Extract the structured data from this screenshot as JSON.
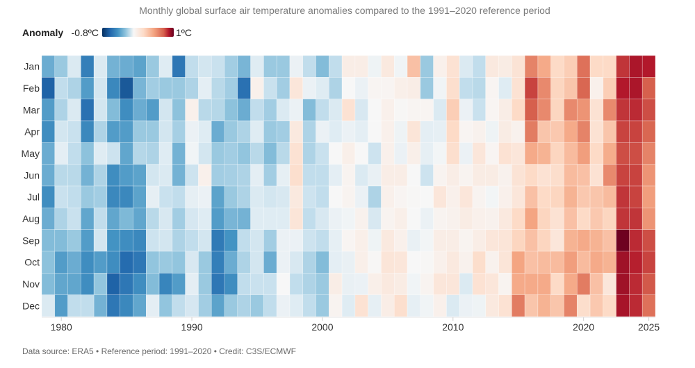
{
  "chart_data": {
    "type": "heatmap",
    "title": "Monthly global surface air temperature anomalies compared to the 1991–2020 reference period",
    "legend": {
      "title": "Anomaly",
      "min_label": "-0.8ºC",
      "max_label": "1ºC",
      "placement": "top-left"
    },
    "color_scale": {
      "min": -0.8,
      "max": 1,
      "low": "#053061",
      "mid": "#f7f7f7",
      "high": "#67001f"
    },
    "months": [
      "Jan",
      "Feb",
      "Mar",
      "Apr",
      "May",
      "Jun",
      "Jul",
      "Aug",
      "Sep",
      "Oct",
      "Nov",
      "Dec"
    ],
    "years": [
      1979,
      1980,
      1981,
      1982,
      1983,
      1984,
      1985,
      1986,
      1987,
      1988,
      1989,
      1990,
      1991,
      1992,
      1993,
      1994,
      1995,
      1996,
      1997,
      1998,
      1999,
      2000,
      2001,
      2002,
      2003,
      2004,
      2005,
      2006,
      2007,
      2008,
      2009,
      2010,
      2011,
      2012,
      2013,
      2014,
      2015,
      2016,
      2017,
      2018,
      2019,
      2020,
      2021,
      2022,
      2023,
      2024,
      2025
    ],
    "x_tick_labels": [
      "1980",
      "1990",
      "2000",
      "2010",
      "2020",
      "2025"
    ],
    "values_by_year": [
      [
        -0.4,
        -0.65,
        -0.45,
        -0.5,
        -0.4,
        -0.4,
        -0.5,
        -0.4,
        -0.35,
        -0.33,
        -0.35,
        -0.12
      ],
      [
        -0.3,
        -0.2,
        -0.25,
        -0.15,
        -0.08,
        -0.22,
        -0.18,
        -0.25,
        -0.35,
        -0.45,
        -0.42,
        -0.45
      ],
      [
        -0.12,
        -0.25,
        -0.12,
        -0.18,
        -0.2,
        -0.22,
        -0.2,
        -0.18,
        -0.3,
        -0.4,
        -0.42,
        -0.2
      ],
      [
        -0.55,
        -0.45,
        -0.6,
        -0.52,
        -0.33,
        -0.38,
        -0.3,
        -0.42,
        -0.45,
        -0.5,
        -0.5,
        -0.2
      ],
      [
        -0.12,
        -0.15,
        -0.15,
        -0.25,
        -0.1,
        -0.25,
        -0.28,
        -0.2,
        -0.15,
        -0.45,
        -0.32,
        -0.38
      ],
      [
        -0.38,
        -0.52,
        -0.35,
        -0.45,
        -0.17,
        -0.5,
        -0.52,
        -0.42,
        -0.48,
        -0.5,
        -0.65,
        -0.58
      ],
      [
        -0.4,
        -0.68,
        -0.5,
        -0.45,
        -0.42,
        -0.45,
        -0.52,
        -0.36,
        -0.5,
        -0.62,
        -0.58,
        -0.52
      ],
      [
        -0.43,
        -0.37,
        -0.4,
        -0.3,
        -0.23,
        -0.43,
        -0.43,
        -0.42,
        -0.52,
        -0.58,
        -0.5,
        -0.42
      ],
      [
        -0.3,
        -0.28,
        -0.45,
        -0.3,
        -0.25,
        -0.15,
        -0.07,
        -0.22,
        -0.17,
        -0.32,
        -0.35,
        -0.08
      ],
      [
        -0.1,
        -0.3,
        -0.15,
        -0.15,
        -0.1,
        -0.12,
        -0.18,
        -0.13,
        -0.15,
        -0.3,
        -0.53,
        -0.32
      ],
      [
        -0.58,
        -0.3,
        -0.33,
        -0.27,
        -0.38,
        -0.38,
        -0.2,
        -0.28,
        -0.25,
        -0.32,
        -0.45,
        -0.2
      ],
      [
        -0.2,
        -0.25,
        0.05,
        -0.05,
        -0.03,
        -0.17,
        -0.07,
        -0.14,
        -0.2,
        -0.13,
        -0.08,
        -0.14
      ],
      [
        -0.15,
        -0.08,
        -0.22,
        -0.1,
        -0.15,
        0.05,
        -0.05,
        -0.1,
        -0.15,
        -0.3,
        -0.3,
        -0.28
      ],
      [
        -0.18,
        -0.22,
        -0.23,
        -0.4,
        -0.3,
        -0.28,
        -0.43,
        -0.45,
        -0.57,
        -0.55,
        -0.58,
        -0.43
      ],
      [
        -0.28,
        -0.28,
        -0.33,
        -0.3,
        -0.28,
        -0.27,
        -0.3,
        -0.37,
        -0.48,
        -0.4,
        -0.5,
        -0.3
      ],
      [
        -0.37,
        -0.6,
        -0.4,
        -0.25,
        -0.32,
        -0.25,
        -0.25,
        -0.38,
        -0.2,
        -0.25,
        -0.2,
        -0.25
      ],
      [
        -0.1,
        0.05,
        -0.2,
        -0.1,
        -0.22,
        -0.08,
        -0.12,
        -0.1,
        -0.15,
        -0.15,
        -0.18,
        -0.3
      ],
      [
        -0.3,
        -0.18,
        -0.28,
        -0.3,
        -0.35,
        -0.28,
        -0.15,
        -0.1,
        -0.28,
        -0.4,
        -0.18,
        -0.2
      ],
      [
        -0.3,
        -0.28,
        -0.12,
        -0.28,
        -0.22,
        -0.07,
        -0.13,
        -0.1,
        -0.05,
        -0.05,
        0,
        -0.05
      ],
      [
        -0.05,
        0.12,
        -0.05,
        0.1,
        0.15,
        0.17,
        0.1,
        0.13,
        -0.05,
        -0.13,
        -0.2,
        -0.1
      ],
      [
        -0.2,
        -0.05,
        -0.35,
        -0.25,
        -0.25,
        -0.2,
        -0.17,
        -0.2,
        -0.17,
        -0.25,
        -0.25,
        -0.2
      ],
      [
        -0.35,
        -0.1,
        -0.2,
        -0.05,
        -0.18,
        -0.2,
        -0.2,
        -0.13,
        -0.2,
        -0.35,
        -0.3,
        -0.3
      ],
      [
        -0.2,
        -0.25,
        -0.12,
        -0.1,
        0,
        -0.08,
        0,
        -0.05,
        -0.07,
        -0.08,
        0.07,
        0.03
      ],
      [
        0.07,
        0,
        0.15,
        -0.05,
        0.06,
        0.03,
        0.03,
        -0.03,
        0.02,
        -0.06,
        -0.06,
        -0.1
      ],
      [
        0.07,
        -0.05,
        -0.13,
        -0.08,
        0,
        -0.12,
        -0.05,
        0.04,
        0.06,
        0.06,
        -0.05,
        0.15
      ],
      [
        -0.04,
        0.02,
        0,
        0,
        -0.17,
        -0.06,
        -0.25,
        -0.13,
        -0.04,
        0.01,
        0.06,
        -0.07
      ],
      [
        0.1,
        0.02,
        0.05,
        0.05,
        0.05,
        0.07,
        0.05,
        0.03,
        0.1,
        0.13,
        0.1,
        0.07
      ],
      [
        -0.03,
        0.06,
        0.01,
        -0.04,
        -0.05,
        0.07,
        0.02,
        0.06,
        0.05,
        0.12,
        0.08,
        0.17
      ],
      [
        0.3,
        0.07,
        0.02,
        0.13,
        0.06,
        0,
        0.01,
        0,
        -0.06,
        0,
        -0.03,
        -0.07
      ],
      [
        -0.3,
        -0.3,
        0.02,
        -0.08,
        -0.07,
        -0.17,
        0,
        -0.05,
        -0.02,
        0.01,
        0.03,
        -0.03
      ],
      [
        0.05,
        -0.03,
        -0.12,
        -0.07,
        -0.02,
        0.03,
        0.12,
        0.03,
        0.07,
        0.05,
        0.12,
        0.05
      ],
      [
        0.15,
        0.17,
        0.25,
        0.2,
        0.17,
        0.07,
        0.05,
        0.04,
        0.07,
        0.1,
        0.12,
        -0.12
      ],
      [
        -0.12,
        -0.2,
        -0.05,
        0.02,
        -0.05,
        0.03,
        0.12,
        0.08,
        0.03,
        0.04,
        -0.12,
        -0.05
      ],
      [
        -0.2,
        -0.22,
        -0.18,
        0.04,
        0.12,
        0.08,
        0.03,
        0.05,
        0.07,
        0.18,
        0.15,
        -0.04
      ],
      [
        0.1,
        0.02,
        0.02,
        -0.04,
        0.02,
        0.08,
        -0.02,
        0.04,
        0.12,
        0.04,
        0.12,
        0.1
      ],
      [
        0.08,
        -0.1,
        0.07,
        0.08,
        0.15,
        0.04,
        0.05,
        0.1,
        0.13,
        0.13,
        0.03,
        0.15
      ],
      [
        0.14,
        0.15,
        0.2,
        0.04,
        0.12,
        0.14,
        0.12,
        0.2,
        0.22,
        0.4,
        0.38,
        0.52
      ],
      [
        0.5,
        0.68,
        0.6,
        0.52,
        0.38,
        0.2,
        0.3,
        0.4,
        0.3,
        0.3,
        0.38,
        0.28
      ],
      [
        0.38,
        0.48,
        0.48,
        0.28,
        0.35,
        0.15,
        0.2,
        0.22,
        0.22,
        0.32,
        0.38,
        0.35
      ],
      [
        0.2,
        0.22,
        0.22,
        0.27,
        0.22,
        0.18,
        0.22,
        0.15,
        0.12,
        0.32,
        0.2,
        0.28
      ],
      [
        0.25,
        0.28,
        0.48,
        0.38,
        0.32,
        0.32,
        0.35,
        0.3,
        0.35,
        0.42,
        0.38,
        0.5
      ],
      [
        0.55,
        0.58,
        0.45,
        0.5,
        0.42,
        0.3,
        0.27,
        0.2,
        0.38,
        0.32,
        0.52,
        0.18
      ],
      [
        0.2,
        0.05,
        0.15,
        0.15,
        0.2,
        0.15,
        0.28,
        0.27,
        0.35,
        0.38,
        0.3,
        0.27
      ],
      [
        0.2,
        0.25,
        0.48,
        0.28,
        0.37,
        0.48,
        0.32,
        0.22,
        0.3,
        0.35,
        0.12,
        0.2
      ],
      [
        0.72,
        0.8,
        0.72,
        0.68,
        0.65,
        0.68,
        0.72,
        0.72,
        0.98,
        0.85,
        0.85,
        0.83
      ],
      [
        0.82,
        0.82,
        0.75,
        0.68,
        0.65,
        0.68,
        0.68,
        0.72,
        0.75,
        0.78,
        0.75,
        0.75
      ],
      [
        0.8,
        0.6,
        0.65,
        0.58,
        0.5,
        0.45,
        0.42,
        0.45,
        0.65,
        0.68,
        0.62,
        0.55
      ]
    ],
    "grid": false
  },
  "footer": "Data source: ERA5 • Reference period: 1991–2020 • Credit: C3S/ECMWF"
}
